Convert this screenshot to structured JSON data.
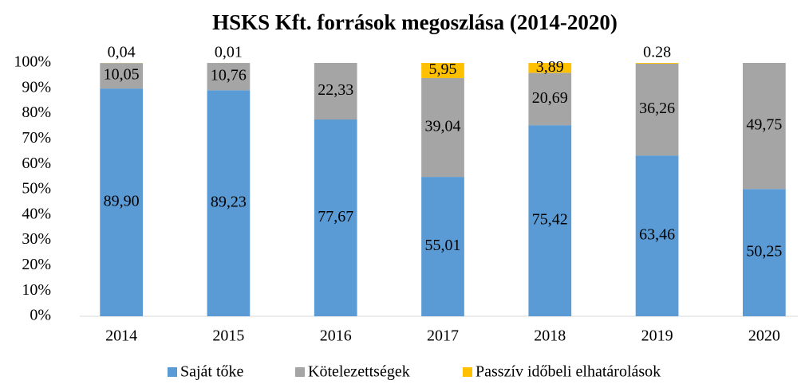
{
  "chart_data": {
    "type": "stacked_bar",
    "title": "HSKS Kft. források megoszlása (2014-2020)",
    "categories": [
      "2014",
      "2015",
      "2016",
      "2017",
      "2018",
      "2019",
      "2020"
    ],
    "series": [
      {
        "name": "Saját tőke",
        "color": "#5b9bd5",
        "values": [
          89.9,
          89.23,
          77.67,
          55.01,
          75.42,
          63.46,
          50.25
        ],
        "value_labels": [
          "89,90",
          "89,23",
          "77,67",
          "55,01",
          "75,42",
          "63,46",
          "50,25"
        ]
      },
      {
        "name": "Kötelezettségek",
        "color": "#a5a5a5",
        "values": [
          10.05,
          10.76,
          22.33,
          39.04,
          20.69,
          36.26,
          49.75
        ],
        "value_labels": [
          "10,05",
          "10,76",
          "22,33",
          "39,04",
          "20,69",
          "36,26",
          "49,75"
        ]
      },
      {
        "name": "Passzív időbeli elhatárolások",
        "color": "#ffc000",
        "values": [
          0.04,
          0.01,
          0,
          5.95,
          3.89,
          0.28,
          0
        ],
        "value_labels": [
          "0,04",
          "0,01",
          null,
          "5,95",
          "3,89",
          "0.28",
          null
        ]
      }
    ],
    "ylim": [
      0,
      100
    ],
    "yticks": [
      {
        "value": 0,
        "label": "0%"
      },
      {
        "value": 10,
        "label": "10%"
      },
      {
        "value": 20,
        "label": "20%"
      },
      {
        "value": 30,
        "label": "30%"
      },
      {
        "value": 40,
        "label": "40%"
      },
      {
        "value": 50,
        "label": "50%"
      },
      {
        "value": 60,
        "label": "60%"
      },
      {
        "value": 70,
        "label": "70%"
      },
      {
        "value": 80,
        "label": "80%"
      },
      {
        "value": 90,
        "label": "90%"
      },
      {
        "value": 100,
        "label": "100%"
      }
    ],
    "legend": "bottom"
  }
}
